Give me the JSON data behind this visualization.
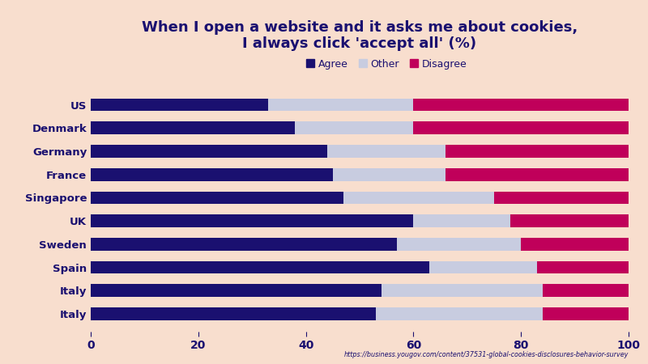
{
  "title": "When I open a website and it asks me about cookies,\nI always click 'accept all' (%)",
  "categories": [
    "US",
    "Denmark",
    "Germany",
    "France",
    "Singapore",
    "UK",
    "Sweden",
    "Spain",
    "Italy",
    "Italy"
  ],
  "agree": [
    33,
    38,
    44,
    45,
    47,
    60,
    57,
    63,
    54,
    53
  ],
  "other": [
    27,
    22,
    22,
    21,
    28,
    18,
    23,
    20,
    30,
    31
  ],
  "disagree": [
    40,
    40,
    34,
    34,
    25,
    22,
    20,
    17,
    16,
    16
  ],
  "agree_color": "#1a1070",
  "other_color": "#c8cce0",
  "disagree_color": "#c0005a",
  "background_color": "#f8dece",
  "title_color": "#1a1070",
  "label_color": "#1a1070",
  "tick_color": "#1a1070",
  "url_text": "https://business.yougov.com/content/37531-global-cookies-disclosures-behavior-survey",
  "url_color": "#1a1070",
  "legend_labels": [
    "Agree",
    "Other",
    "Disagree"
  ],
  "xlim": [
    0,
    100
  ],
  "xlabel_ticks": [
    0,
    20,
    40,
    60,
    80,
    100
  ]
}
